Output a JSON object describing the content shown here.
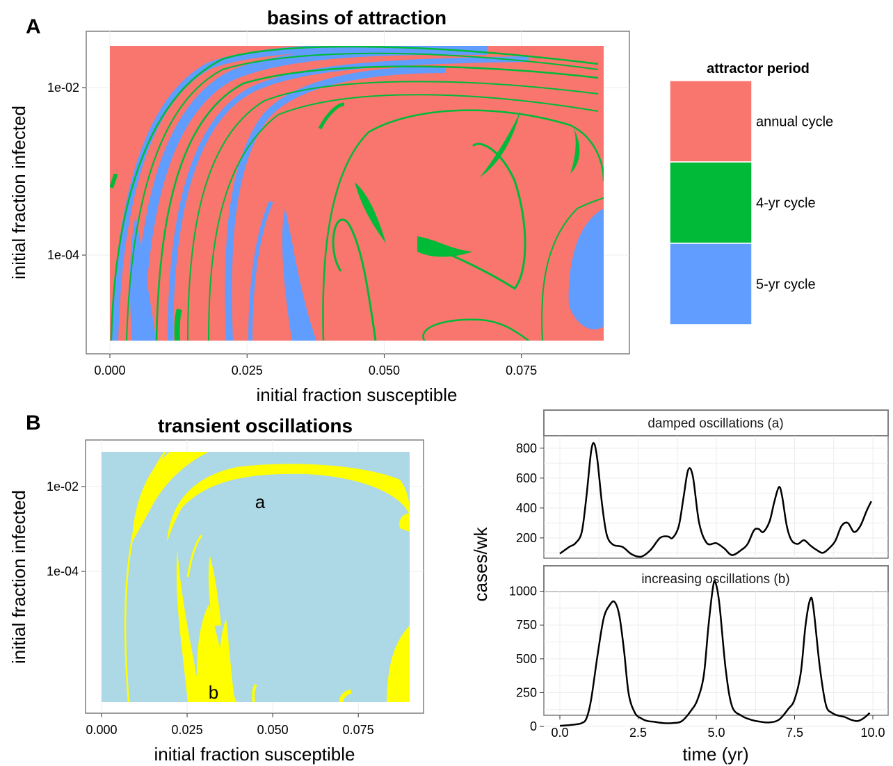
{
  "chart_data": [
    {
      "id": "A",
      "type": "heatmap",
      "panel_label": "A",
      "title": "basins of attraction",
      "xlabel": "initial fraction susceptible",
      "ylabel": "initial fraction infected",
      "x_ticks": [
        "0.000",
        "0.025",
        "0.050",
        "0.075"
      ],
      "x_tick_values": [
        0,
        0.025,
        0.05,
        0.075
      ],
      "xlim": [
        0,
        0.09
      ],
      "y_ticks": [
        "1e-02",
        "1e-04"
      ],
      "y_tick_values": [
        0.01,
        0.0001
      ],
      "y_scale": "log",
      "legend": {
        "title": "attractor period",
        "position": "right",
        "entries": [
          {
            "label": "annual cycle",
            "color": "#F8766D"
          },
          {
            "label": "4-yr cycle",
            "color": "#00BA38"
          },
          {
            "label": "5-yr cycle",
            "color": "#619CFF"
          }
        ]
      }
    },
    {
      "id": "B",
      "type": "heatmap",
      "panel_label": "B",
      "title": "transient oscillations",
      "xlabel": "initial fraction susceptible",
      "ylabel": "initial fraction infected",
      "x_ticks": [
        "0.000",
        "0.025",
        "0.050",
        "0.075"
      ],
      "x_tick_values": [
        0,
        0.025,
        0.05,
        0.075
      ],
      "xlim": [
        0,
        0.09
      ],
      "y_ticks": [
        "1e-02",
        "1e-04"
      ],
      "y_tick_values": [
        0.01,
        0.0001
      ],
      "y_scale": "log",
      "colors": {
        "background": "#ADD8E6",
        "highlight": "#FFFF00"
      },
      "annotations": [
        {
          "text": "a",
          "x": 0.046,
          "y": 0.0065
        },
        {
          "text": "b",
          "x": 0.033,
          "y": 1.1e-05
        }
      ]
    },
    {
      "id": "damped",
      "type": "line",
      "strip": "damped oscillations (a)",
      "ylabel": "cases/wk",
      "ylim": [
        60,
        850
      ],
      "y_ticks": [
        200,
        400,
        600,
        800
      ],
      "x_ticks": [
        "0.0",
        "2.5",
        "5.0",
        "7.5",
        "10.0"
      ],
      "x_tick_values": [
        0,
        2.5,
        5,
        7.5,
        10
      ],
      "xlim": [
        0,
        10
      ],
      "x": [
        0.0,
        0.3,
        0.5,
        0.7,
        0.85,
        1.0,
        1.1,
        1.2,
        1.35,
        1.5,
        1.7,
        2.0,
        2.3,
        2.6,
        2.9,
        3.2,
        3.45,
        3.6,
        3.8,
        3.95,
        4.1,
        4.25,
        4.45,
        4.7,
        5.0,
        5.25,
        5.5,
        5.8,
        6.0,
        6.2,
        6.35,
        6.5,
        6.7,
        6.85,
        7.0,
        7.1,
        7.25,
        7.4,
        7.6,
        7.8,
        8.0,
        8.2,
        8.4,
        8.6,
        8.8,
        9.0,
        9.2,
        9.4,
        9.6,
        9.8,
        9.95
      ],
      "y": [
        95,
        140,
        165,
        240,
        480,
        780,
        830,
        720,
        420,
        220,
        155,
        140,
        90,
        75,
        120,
        200,
        210,
        200,
        280,
        470,
        655,
        610,
        300,
        165,
        165,
        130,
        85,
        120,
        160,
        250,
        260,
        240,
        310,
        440,
        540,
        480,
        280,
        185,
        160,
        185,
        150,
        120,
        100,
        130,
        180,
        280,
        300,
        240,
        280,
        380,
        445
      ]
    },
    {
      "id": "increasing",
      "type": "line",
      "strip": "increasing oscillations (b)",
      "ylabel": "cases/wk",
      "ylim": [
        -20,
        1080
      ],
      "y_ticks": [
        0,
        250,
        500,
        750,
        1000
      ],
      "x_ticks": [
        "0.0",
        "2.5",
        "5.0",
        "7.5",
        "10.0"
      ],
      "x_tick_values": [
        0,
        2.5,
        5,
        7.5,
        10
      ],
      "xlim": [
        0,
        10
      ],
      "x": [
        0.0,
        0.3,
        0.5,
        0.7,
        0.85,
        1.0,
        1.2,
        1.4,
        1.6,
        1.75,
        1.9,
        2.05,
        2.2,
        2.4,
        2.6,
        2.8,
        3.0,
        3.3,
        3.6,
        3.9,
        4.2,
        4.4,
        4.6,
        4.75,
        4.9,
        4.98,
        5.1,
        5.3,
        5.5,
        5.8,
        6.1,
        6.4,
        6.7,
        7.0,
        7.3,
        7.5,
        7.7,
        7.85,
        8.0,
        8.1,
        8.3,
        8.5,
        8.7,
        8.9,
        9.1,
        9.3,
        9.5,
        9.7,
        9.9
      ],
      "y": [
        5,
        10,
        15,
        25,
        60,
        200,
        520,
        800,
        900,
        920,
        820,
        560,
        240,
        100,
        60,
        40,
        35,
        25,
        25,
        40,
        120,
        200,
        380,
        750,
        1040,
        1060,
        900,
        420,
        150,
        80,
        50,
        35,
        30,
        50,
        130,
        200,
        400,
        750,
        940,
        880,
        450,
        160,
        100,
        80,
        70,
        50,
        40,
        60,
        100
      ]
    }
  ],
  "shared": {
    "ylabel": "cases/wk",
    "xlabel": "time (yr)"
  }
}
